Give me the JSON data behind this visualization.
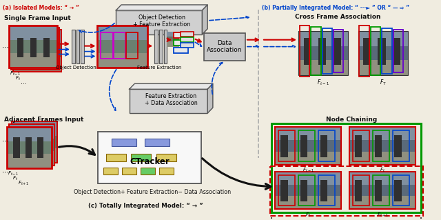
{
  "title_a": "(a) Isolated Models: “ → ”",
  "title_b": "(b) Partially Integrated Model: “ ···► ” OR “ — ⇨ ”",
  "title_c": "(c) Totally Integrated Model: “ → ”",
  "label_single": "Single Frame Input",
  "label_adjacent": "Adjacent Frames Input",
  "label_obj_det": "Object Detection",
  "label_feat_ext": "Feature Extraction",
  "label_data_assoc": "Data\nAssociation",
  "label_obj_feat": "Object Detection\n+ Feature Extraction",
  "label_feat_data": "Feature Extraction\n+ Data Association",
  "label_cross": "Cross Frame Association",
  "label_node": "Node Chaining",
  "label_ctracker": "CTracker",
  "label_total": "Object Detection+ Feature Extraction− Data Association",
  "bg_color": "#f0ece0",
  "red": "#cc0000",
  "blue": "#0044cc",
  "green": "#009900",
  "magenta": "#cc00cc",
  "purple": "#6600cc",
  "black": "#111111",
  "dark_gray": "#555555",
  "mid_gray": "#888888",
  "box_fill": "#d0d0d0",
  "box_fill2": "#e0e0e0",
  "img_green": "#6a8a6a",
  "img_blue": "#5a6a8a",
  "white": "#ffffff"
}
